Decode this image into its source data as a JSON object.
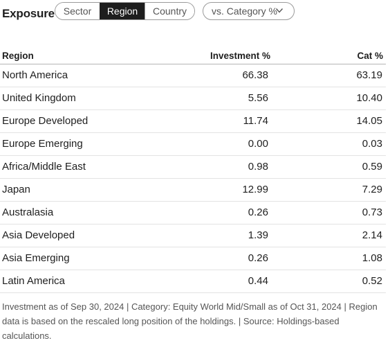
{
  "header": {
    "title": "Exposure",
    "tabs": [
      "Sector",
      "Region",
      "Country"
    ],
    "active_tab": "Region",
    "dropdown_value": "vs. Category %"
  },
  "table": {
    "columns": [
      "Region",
      "Investment %",
      "Cat %"
    ],
    "rows": [
      {
        "region": "North America",
        "investment": "66.38",
        "cat": "63.19"
      },
      {
        "region": "United Kingdom",
        "investment": "5.56",
        "cat": "10.40"
      },
      {
        "region": "Europe Developed",
        "investment": "11.74",
        "cat": "14.05"
      },
      {
        "region": "Europe Emerging",
        "investment": "0.00",
        "cat": "0.03"
      },
      {
        "region": "Africa/Middle East",
        "investment": "0.98",
        "cat": "0.59"
      },
      {
        "region": "Japan",
        "investment": "12.99",
        "cat": "7.29"
      },
      {
        "region": "Australasia",
        "investment": "0.26",
        "cat": "0.73"
      },
      {
        "region": "Asia Developed",
        "investment": "1.39",
        "cat": "2.14"
      },
      {
        "region": "Asia Emerging",
        "investment": "0.26",
        "cat": "1.08"
      },
      {
        "region": "Latin America",
        "investment": "0.44",
        "cat": "0.52"
      }
    ]
  },
  "footnote": "Investment as of Sep 30, 2024 | Category: Equity World Mid/Small as of Oct 31, 2024 | Region data is based on the rescaled long position of the holdings. | Source: Holdings-based calculations.",
  "colors": {
    "active_tab_bg": "#1e1e1e",
    "border": "#9a9a9a",
    "text": "#1e1e1e",
    "muted_text": "#555555"
  }
}
